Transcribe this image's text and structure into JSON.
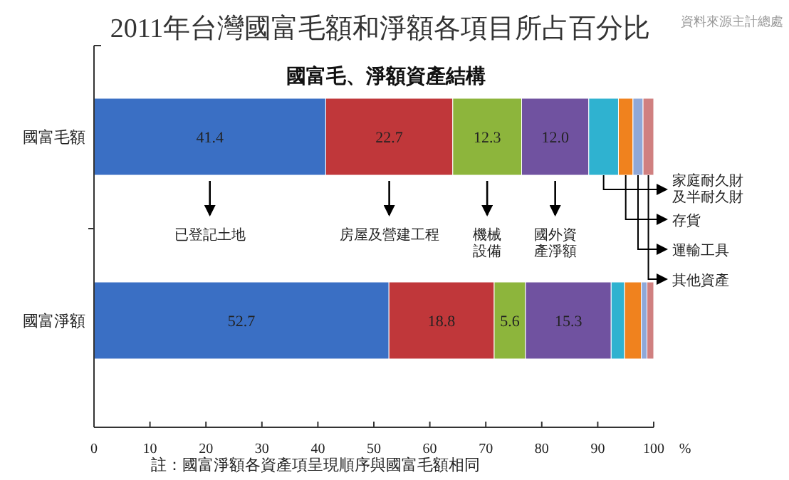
{
  "chart_data": {
    "type": "bar",
    "orientation": "horizontal",
    "stacked": true,
    "title": "2011年台灣國富毛額和淨額各項目所占百分比",
    "subtitle": "國富毛、淨額資產結構",
    "xlabel": "%",
    "categories": [
      "國富毛額",
      "國富淨額"
    ],
    "series": [
      {
        "name": "已登記土地",
        "color": "#3a6fc4",
        "values": [
          41.4,
          52.7
        ],
        "value_labels": [
          "41.4",
          "52.7"
        ]
      },
      {
        "name": "房屋及營建工程",
        "color": "#c0373a",
        "values": [
          22.7,
          18.8
        ],
        "value_labels": [
          "22.7",
          "18.8"
        ]
      },
      {
        "name": "機械設備",
        "color": "#8db53c",
        "values": [
          12.3,
          5.6
        ],
        "value_labels": [
          "12.3",
          "5.6"
        ]
      },
      {
        "name": "國外資產淨額",
        "color": "#7052a0",
        "values": [
          12.0,
          15.3
        ],
        "value_labels": [
          "12.0",
          "15.3"
        ]
      },
      {
        "name": "家庭耐久財及半耐久財",
        "color": "#2fb2d0",
        "values": [
          5.3,
          2.4
        ]
      },
      {
        "name": "存貨",
        "color": "#f0821e",
        "values": [
          2.6,
          3.0
        ]
      },
      {
        "name": "運輸工具",
        "color": "#8fa8d8",
        "values": [
          1.8,
          1.0
        ]
      },
      {
        "name": "其他資產",
        "color": "#d08080",
        "values": [
          1.9,
          1.2
        ]
      }
    ],
    "xlim": [
      0,
      100
    ],
    "xticks": [
      0,
      10,
      20,
      30,
      40,
      50,
      60,
      70,
      80,
      90,
      100
    ],
    "grid": false,
    "annotations": [
      "資料來源主計總處",
      "註：國富淨額各資產項呈現順序與國富毛額相同"
    ]
  }
}
